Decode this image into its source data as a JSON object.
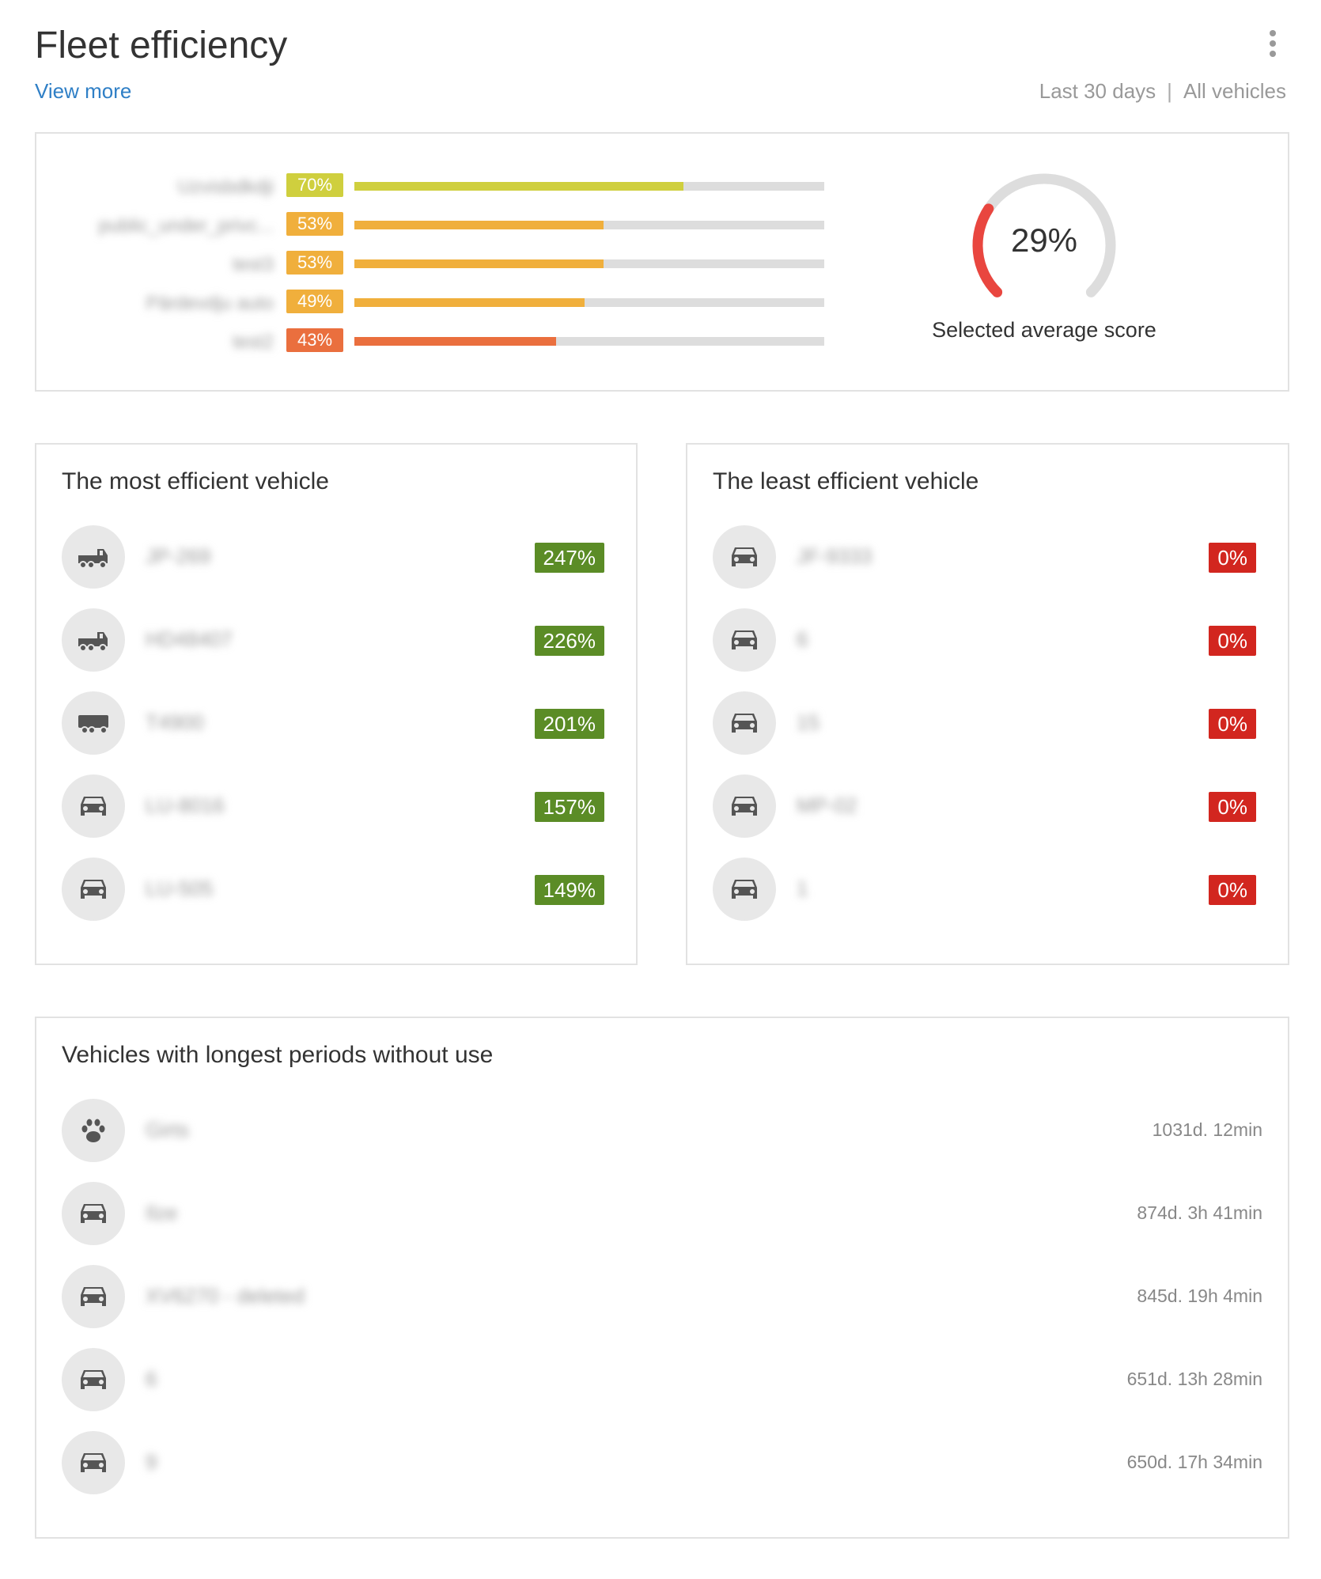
{
  "header": {
    "title": "Fleet efficiency",
    "view_more": "View more",
    "period": "Last 30 days",
    "separator": "|",
    "scope": "All vehicles"
  },
  "scores": {
    "bars": [
      {
        "name": "Uzvisbdkdji",
        "label": "70%",
        "value": 70,
        "color": "#cfcf3e"
      },
      {
        "name": "public_under_privc...",
        "label": "53%",
        "value": 53,
        "color": "#f0af3c"
      },
      {
        "name": "test3",
        "label": "53%",
        "value": 53,
        "color": "#f0af3c"
      },
      {
        "name": "Pārdevdju auto",
        "label": "49%",
        "value": 49,
        "color": "#f0af3c"
      },
      {
        "name": "test2",
        "label": "43%",
        "value": 43,
        "color": "#ea6f3e"
      }
    ],
    "gauge_value": "29%",
    "gauge_percent": 29,
    "gauge_label": "Selected average score",
    "gauge_color": "#e9463f",
    "track_color": "#dddddd"
  },
  "most_efficient": {
    "title": "The most efficient vehicle",
    "items": [
      {
        "icon": "truck-icon",
        "name": "JP-269",
        "value": "247%"
      },
      {
        "icon": "truck-icon",
        "name": "HD48407",
        "value": "226%"
      },
      {
        "icon": "trailer-truck-icon",
        "name": "T4900",
        "value": "201%"
      },
      {
        "icon": "car-icon",
        "name": "LU-8016",
        "value": "157%"
      },
      {
        "icon": "car-icon",
        "name": "LU-505",
        "value": "149%"
      }
    ]
  },
  "least_efficient": {
    "title": "The least efficient vehicle",
    "items": [
      {
        "icon": "car-icon",
        "name": "JF-9333",
        "value": "0%"
      },
      {
        "icon": "car-icon",
        "name": "6",
        "value": "0%"
      },
      {
        "icon": "car-icon",
        "name": "15",
        "value": "0%"
      },
      {
        "icon": "car-icon",
        "name": "MP-02",
        "value": "0%"
      },
      {
        "icon": "car-icon",
        "name": "1",
        "value": "0%"
      }
    ]
  },
  "unused": {
    "title": "Vehicles with longest periods without use",
    "items": [
      {
        "icon": "paw-icon",
        "name": "Girts",
        "duration": "1031d. 12min"
      },
      {
        "icon": "car-icon",
        "name": "Ilze",
        "duration": "874d. 3h 41min"
      },
      {
        "icon": "car-icon",
        "name": "XV6270 - deleted",
        "duration": "845d. 19h 4min"
      },
      {
        "icon": "car-icon",
        "name": "6",
        "duration": "651d. 13h 28min"
      },
      {
        "icon": "car-icon",
        "name": "9",
        "duration": "650d. 17h 34min"
      }
    ]
  }
}
